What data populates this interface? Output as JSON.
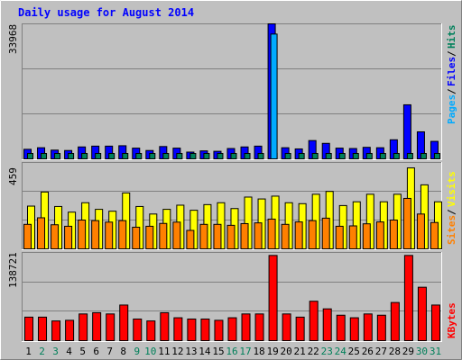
{
  "chart_data": [
    {
      "type": "bar",
      "title": "Daily usage for August 2014",
      "categories": [
        "1",
        "2",
        "3",
        "4",
        "5",
        "6",
        "7",
        "8",
        "9",
        "10",
        "11",
        "12",
        "13",
        "14",
        "15",
        "16",
        "17",
        "18",
        "19",
        "20",
        "21",
        "22",
        "23",
        "24",
        "25",
        "26",
        "27",
        "28",
        "29",
        "30",
        "31"
      ],
      "weekend_days": [
        "2",
        "3",
        "9",
        "10",
        "16",
        "17",
        "23",
        "24",
        "30",
        "31"
      ],
      "ymax_label": "33968",
      "ylim": [
        0,
        33968
      ],
      "grid": true,
      "series": [
        {
          "name": "Pages",
          "color": "#00aaff",
          "values": [
            0,
            0,
            0,
            0,
            0,
            0,
            0,
            0,
            0,
            0,
            0,
            0,
            0,
            0,
            0,
            0,
            0,
            0,
            31400,
            0,
            0,
            0,
            0,
            0,
            0,
            0,
            0,
            0,
            0,
            0,
            0
          ]
        },
        {
          "name": "Files",
          "color": "#0000ff",
          "values": [
            2400,
            2800,
            2200,
            2100,
            3000,
            3200,
            3200,
            3300,
            2700,
            2100,
            3100,
            2700,
            1700,
            2000,
            1900,
            2600,
            3000,
            3200,
            33968,
            2800,
            2500,
            4600,
            3900,
            2700,
            2600,
            2900,
            2800,
            4800,
            13600,
            6800,
            4400
          ]
        },
        {
          "name": "Hits",
          "color": "#00805a",
          "values": [
            2400,
            2800,
            2200,
            2100,
            3000,
            3200,
            3200,
            3300,
            2700,
            2100,
            3100,
            2700,
            1700,
            2000,
            1900,
            2600,
            3000,
            3200,
            33968,
            2800,
            2500,
            4600,
            3900,
            2700,
            2600,
            2900,
            2800,
            4800,
            13600,
            6800,
            4400
          ]
        }
      ]
    },
    {
      "type": "bar",
      "ymax_label": "459",
      "ylim": [
        0,
        459
      ],
      "grid": true,
      "series": [
        {
          "name": "Sites",
          "color": "#ff8000",
          "values": [
            130,
            165,
            128,
            120,
            153,
            150,
            142,
            150,
            115,
            120,
            135,
            142,
            98,
            130,
            130,
            125,
            134,
            138,
            158,
            130,
            143,
            150,
            163,
            120,
            122,
            133,
            143,
            153,
            268,
            185,
            140
          ]
        },
        {
          "name": "Visits",
          "color": "#ffff00",
          "values": [
            227,
            302,
            225,
            195,
            245,
            210,
            200,
            297,
            225,
            185,
            210,
            232,
            205,
            235,
            245,
            214,
            275,
            265,
            280,
            245,
            240,
            290,
            305,
            230,
            250,
            290,
            250,
            290,
            430,
            340,
            250
          ]
        }
      ]
    },
    {
      "type": "bar",
      "ymax_label": "138721",
      "ylim": [
        0,
        138721
      ],
      "grid": true,
      "series": [
        {
          "name": "KBytes",
          "color": "#ff0000",
          "values": [
            37000,
            37000,
            31000,
            32000,
            42000,
            44000,
            42000,
            56000,
            34000,
            31000,
            44000,
            36000,
            34000,
            34000,
            32000,
            36000,
            42000,
            42000,
            134000,
            42000,
            37000,
            62000,
            50000,
            40000,
            36000,
            42000,
            40000,
            60000,
            134000,
            84000,
            56000
          ]
        }
      ]
    }
  ]
}
